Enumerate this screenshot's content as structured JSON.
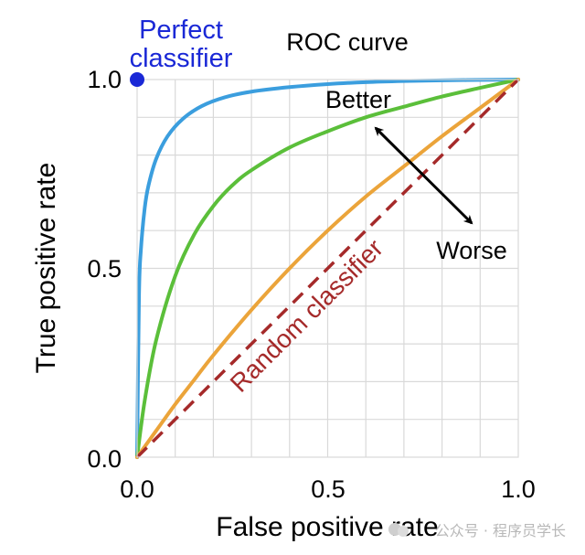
{
  "chart_data": {
    "type": "line",
    "title": "ROC curve",
    "xlabel": "False positive rate",
    "ylabel": "True positive rate",
    "xlim": [
      0,
      1
    ],
    "ylim": [
      0,
      1
    ],
    "x_ticks": [
      0.0,
      0.5,
      1.0
    ],
    "y_ticks": [
      0.0,
      0.5,
      1.0
    ],
    "x_tick_labels": [
      "0.0",
      "0.5",
      "1.0"
    ],
    "y_tick_labels": [
      "0.0",
      "0.5",
      "1.0"
    ],
    "grid": true,
    "grid_step": 0.1,
    "series": [
      {
        "color": "#3b9ede",
        "dashed": false,
        "x": [
          0,
          0.005,
          0.01,
          0.02,
          0.03,
          0.05,
          0.08,
          0.12,
          0.17,
          0.23,
          0.3,
          0.4,
          0.5,
          0.6,
          0.7,
          0.8,
          0.9,
          1.0
        ],
        "y": [
          0,
          0.43,
          0.55,
          0.66,
          0.72,
          0.79,
          0.85,
          0.896,
          0.93,
          0.953,
          0.968,
          0.98,
          0.988,
          0.993,
          0.996,
          0.998,
          0.999,
          1.0
        ]
      },
      {
        "color": "#5bbf3a",
        "dashed": false,
        "x": [
          0,
          0.02,
          0.05,
          0.1,
          0.15,
          0.2,
          0.25,
          0.3,
          0.4,
          0.5,
          0.6,
          0.7,
          0.8,
          0.9,
          1.0
        ],
        "y": [
          0,
          0.15,
          0.31,
          0.48,
          0.59,
          0.665,
          0.72,
          0.76,
          0.82,
          0.863,
          0.9,
          0.928,
          0.955,
          0.978,
          1.0
        ]
      },
      {
        "color": "#eba43a",
        "dashed": false,
        "x": [
          0,
          0.05,
          0.1,
          0.15,
          0.2,
          0.3,
          0.4,
          0.5,
          0.6,
          0.7,
          0.8,
          0.9,
          1.0
        ],
        "y": [
          0,
          0.07,
          0.14,
          0.205,
          0.27,
          0.39,
          0.5,
          0.6,
          0.69,
          0.77,
          0.85,
          0.925,
          1.0
        ]
      },
      {
        "name": "Random classifier",
        "color": "#a52a2a",
        "dashed": true,
        "x": [
          0,
          1
        ],
        "y": [
          0,
          1
        ]
      }
    ],
    "points": [
      {
        "name": "Perfect classifier",
        "x": 0,
        "y": 1,
        "color": "#1a28d6"
      }
    ],
    "annotations": {
      "perfect_line1": "Perfect",
      "perfect_line2": "classifier",
      "random": "Random classifier",
      "better": "Better",
      "worse": "Worse"
    }
  },
  "watermark": "公众号 · 程序员学长"
}
